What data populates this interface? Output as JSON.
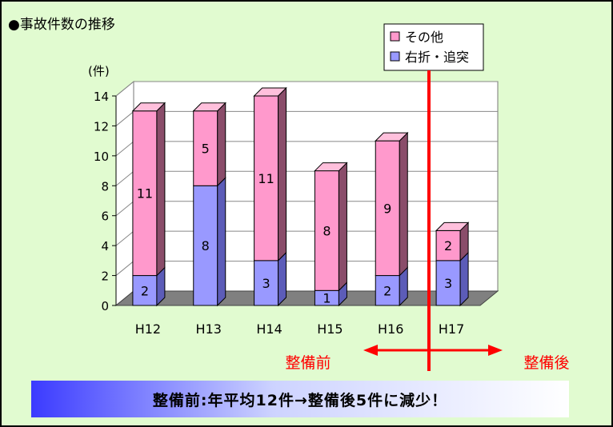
{
  "title": "●事故件数の推移",
  "chart_data": {
    "type": "bar",
    "stacked": true,
    "categories": [
      "H12",
      "H13",
      "H14",
      "H15",
      "H16",
      "H17"
    ],
    "series": [
      {
        "name": "右折・追突",
        "values": [
          2,
          8,
          3,
          1,
          2,
          3
        ],
        "color": "#9999ff",
        "side_color": "#5c5cb8",
        "top_color": "#b8b8ff"
      },
      {
        "name": "その他",
        "values": [
          11,
          5,
          11,
          8,
          9,
          2
        ],
        "color": "#ff99cc",
        "side_color": "#8a4d6a",
        "top_color": "#ffc0dc"
      }
    ],
    "ylabel": "(件)",
    "ylim": [
      0,
      14
    ],
    "yticks": [
      0,
      2,
      4,
      6,
      8,
      10,
      12,
      14
    ],
    "grid": true,
    "legend": "top-right",
    "divider_label_before": "整備前",
    "divider_label_after": "整備後",
    "divider_color": "#ff0000"
  },
  "summary": "整備前:年平均12件→整備後5件に減少！"
}
